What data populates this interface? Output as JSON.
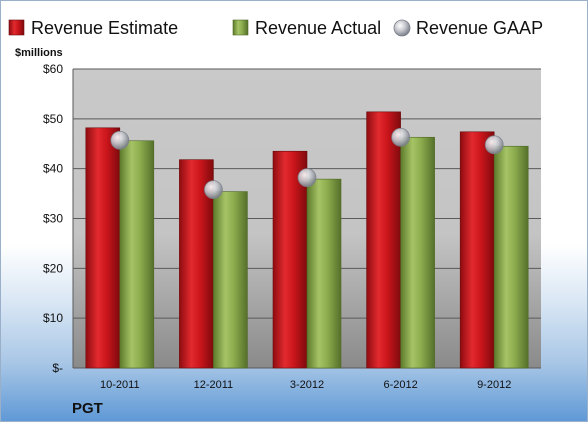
{
  "chart_data": {
    "type": "bar",
    "title": "",
    "xlabel": "",
    "ylabel": "",
    "unit_label": "$millions",
    "footer_label": "PGT",
    "categories": [
      "10-2011",
      "12-2011",
      "3-2012",
      "6-2012",
      "9-2012"
    ],
    "series": [
      {
        "name": "Revenue Estimate",
        "type": "bar",
        "color": "#d0161e",
        "values": [
          48.2,
          41.8,
          43.5,
          51.4,
          47.4
        ]
      },
      {
        "name": "Revenue Actual",
        "type": "bar",
        "color": "#8cac4e",
        "values": [
          45.6,
          35.4,
          37.9,
          46.3,
          44.5
        ]
      },
      {
        "name": "Revenue GAAP",
        "type": "marker",
        "color": "#b9bcc4",
        "values": [
          45.7,
          35.8,
          38.2,
          46.3,
          44.8
        ]
      }
    ],
    "ylim": [
      0,
      60
    ],
    "yticks": [
      0,
      10,
      20,
      30,
      40,
      50,
      60
    ],
    "ytick_labels": [
      "$-",
      "$10",
      "$20",
      "$30",
      "$40",
      "$50",
      "$60"
    ],
    "grid": true,
    "legend_position": "top"
  }
}
